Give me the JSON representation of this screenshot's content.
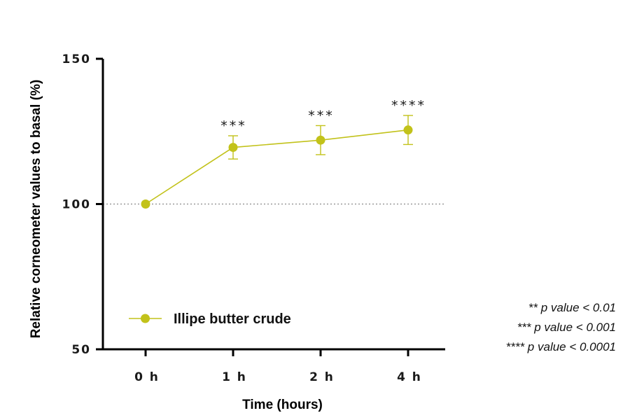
{
  "chart_data": {
    "type": "line",
    "categories": [
      "0 h",
      "1 h",
      "2 h",
      "4 h"
    ],
    "series": [
      {
        "name": "Illipe butter crude",
        "values": [
          100,
          119.5,
          122,
          125.5
        ],
        "error": [
          0,
          4,
          5,
          5
        ],
        "significance": [
          "",
          "***",
          "***",
          "****"
        ]
      }
    ],
    "xlabel": "Time (hours)",
    "ylabel": "Relative corneometer values to basal (%)",
    "ylim": [
      50,
      150
    ],
    "yticks": [
      50,
      100,
      150
    ],
    "reference_line": 100,
    "legend_position": "bottom-left",
    "grid": false,
    "color": "#c2c21a"
  },
  "notes": [
    "** p value < 0.01",
    "*** p value < 0.001",
    "**** p value < 0.0001"
  ]
}
